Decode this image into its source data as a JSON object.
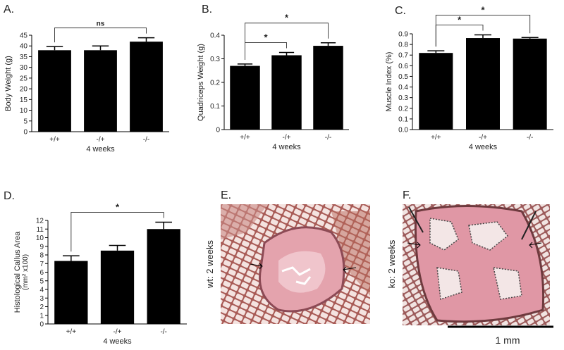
{
  "chart_data": [
    {
      "type": "bar",
      "panel": "A.",
      "ylabel": "Body Weight (g)",
      "xlabel": "4 weeks",
      "categories": [
        "+/+",
        "-/+",
        "-/-"
      ],
      "values": [
        38,
        38,
        42
      ],
      "errors": [
        1.7,
        2,
        1.8
      ],
      "color": "#000000",
      "ylim": [
        0,
        45
      ],
      "yticks": [
        0,
        5,
        10,
        15,
        20,
        25,
        30,
        35,
        40,
        45
      ],
      "annotations": [
        {
          "from": 0,
          "to": 2,
          "text": "ns"
        }
      ]
    },
    {
      "type": "bar",
      "panel": "B.",
      "ylabel": "Quadriceps Weight (g)",
      "xlabel": "4 weeks",
      "categories": [
        "+/+",
        "-/+",
        "-/-"
      ],
      "values": [
        0.27,
        0.315,
        0.355
      ],
      "errors": [
        0.008,
        0.012,
        0.013
      ],
      "color": "#000000",
      "ylim": [
        0,
        0.4
      ],
      "yticks": [
        0,
        0.1,
        0.2,
        0.3,
        0.4
      ],
      "annotations": [
        {
          "from": 0,
          "to": 1,
          "text": "*"
        },
        {
          "from": 0,
          "to": 2,
          "text": "*"
        }
      ]
    },
    {
      "type": "bar",
      "panel": "C.",
      "ylabel": "Muscle Index (%)",
      "xlabel": "4 weeks",
      "categories": [
        "+/+",
        "-/+",
        "-/-"
      ],
      "values": [
        0.72,
        0.86,
        0.855
      ],
      "errors": [
        0.02,
        0.03,
        0.01
      ],
      "color": "#000000",
      "ylim": [
        0,
        0.9
      ],
      "yticks": [
        {
          "value": 0,
          "label": "0.0"
        },
        0.1,
        0.2,
        0.3,
        0.4,
        0.5,
        0.6,
        0.7,
        0.8,
        0.9
      ],
      "annotations": [
        {
          "from": 0,
          "to": 1,
          "text": "*"
        },
        {
          "from": 0,
          "to": 2,
          "text": "*"
        }
      ]
    },
    {
      "type": "bar",
      "panel": "D.",
      "ylabel": "Histological Callus Area",
      "ylabel2": "(mm² x100)",
      "xlabel": "4 weeks",
      "categories": [
        "+/+",
        "-/+",
        "-/-"
      ],
      "values": [
        7.3,
        8.5,
        11.0
      ],
      "errors": [
        0.6,
        0.6,
        0.8
      ],
      "color": "#000000",
      "ylim": [
        0,
        12
      ],
      "yticks": [
        0,
        1,
        2,
        3,
        4,
        5,
        6,
        7,
        8,
        9,
        10,
        11,
        12
      ],
      "annotations": [
        {
          "from": 0,
          "to": 2,
          "text": "*"
        }
      ]
    }
  ],
  "images": [
    {
      "panel": "E.",
      "caption": "wt: 2 weeks"
    },
    {
      "panel": "F.",
      "caption": "ko: 2 weeks"
    }
  ],
  "scale_bar": "1 mm"
}
